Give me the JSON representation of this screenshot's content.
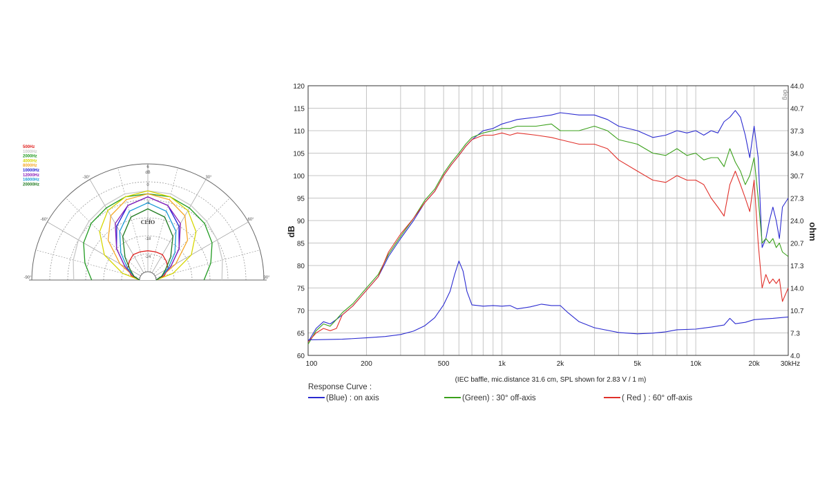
{
  "chart_data": [
    {
      "type": "polar",
      "logo": "CLIO",
      "r_unit": "dB",
      "r_ticks": [
        "6",
        "0",
        "-6",
        "-12",
        "-18",
        "-24"
      ],
      "angle_labels": [
        "-90°",
        "-60°",
        "-30°",
        "30°",
        "60°",
        "90°"
      ],
      "angles": [
        -90,
        -75,
        -60,
        -45,
        -30,
        -15,
        0,
        15,
        30,
        45,
        60,
        75,
        90
      ],
      "series": [
        {
          "name": "500Hz",
          "color": "#e0201e",
          "values": [
            -30,
            -27,
            -25,
            -24,
            -23,
            -23,
            -23,
            -23,
            -23,
            -24,
            -25,
            -27,
            -30
          ]
        },
        {
          "name": "1000Hz",
          "color": "#c8c8c8",
          "values": [
            -8,
            -7,
            -6,
            -5,
            -4,
            -3,
            -3,
            -3,
            -4,
            -5,
            -6,
            -7,
            -8
          ]
        },
        {
          "name": "2000Hz",
          "color": "#1f9a1f",
          "values": [
            -14,
            -11,
            -8,
            -6,
            -5,
            -4,
            -4,
            -4,
            -5,
            -6,
            -8,
            -11,
            -14
          ]
        },
        {
          "name": "4000Hz",
          "color": "#d6d600",
          "values": [
            -30,
            -24,
            -16,
            -10,
            -6,
            -4,
            -3,
            -4,
            -6,
            -10,
            -16,
            -24,
            -30
          ]
        },
        {
          "name": "8000Hz",
          "color": "#f5a623",
          "values": [
            -30,
            -28,
            -22,
            -14,
            -8,
            -5,
            -4,
            -5,
            -8,
            -14,
            -22,
            -28,
            -30
          ]
        },
        {
          "name": "10000Hz",
          "color": "#1b1bd4",
          "values": [
            -30,
            -28,
            -24,
            -18,
            -12,
            -7,
            -5,
            -7,
            -12,
            -18,
            -24,
            -28,
            -30
          ]
        },
        {
          "name": "12000Hz",
          "color": "#8a1fb8",
          "values": [
            -30,
            -28,
            -24,
            -18,
            -11,
            -7,
            -5,
            -7,
            -11,
            -18,
            -24,
            -28,
            -30
          ]
        },
        {
          "name": "16000Hz",
          "color": "#1a9ad6",
          "values": [
            -30,
            -28,
            -25,
            -20,
            -14,
            -9,
            -7,
            -9,
            -14,
            -20,
            -25,
            -28,
            -30
          ]
        },
        {
          "name": "20000Hz",
          "color": "#1e7a1e",
          "values": [
            -30,
            -28,
            -26,
            -22,
            -16,
            -11,
            -9,
            -11,
            -16,
            -22,
            -26,
            -28,
            -30
          ]
        }
      ]
    },
    {
      "type": "line",
      "x_scale": "log",
      "xlim": [
        100,
        30000
      ],
      "ylim": [
        60,
        120
      ],
      "y2lim": [
        4.0,
        44.0
      ],
      "ylabel": "dB",
      "y2label": "ohm",
      "x_ticks": [
        {
          "value": 100,
          "label": "100"
        },
        {
          "value": 200,
          "label": "200"
        },
        {
          "value": 500,
          "label": "500"
        },
        {
          "value": 1000,
          "label": "1k"
        },
        {
          "value": 2000,
          "label": "2k"
        },
        {
          "value": 5000,
          "label": "5k"
        },
        {
          "value": 10000,
          "label": "10k"
        },
        {
          "value": 20000,
          "label": "20k"
        },
        {
          "value": 30000,
          "label": "30kHz"
        }
      ],
      "y_ticks": [
        60,
        65,
        70,
        75,
        80,
        85,
        90,
        95,
        100,
        105,
        110,
        115,
        120
      ],
      "y2_ticks": [
        "4.0",
        "7.3",
        "10.7",
        "14.0",
        "17.3",
        "20.7",
        "24.0",
        "27.3",
        "30.7",
        "34.0",
        "37.3",
        "40.7",
        "44.0"
      ],
      "corner_note": "deg",
      "note": "(IEC baffle, mic.distance 31.6 cm, SPL shown for 2.83 V / 1 m)",
      "legend_title": "Response Curve :",
      "series": [
        {
          "name": "(Blue)  : on axis",
          "color": "#2a2ad0",
          "x": [
            100,
            110,
            120,
            130,
            140,
            150,
            170,
            200,
            230,
            260,
            300,
            350,
            400,
            450,
            500,
            550,
            600,
            650,
            700,
            800,
            900,
            1000,
            1100,
            1200,
            1500,
            1800,
            2000,
            2500,
            3000,
            3500,
            4000,
            5000,
            6000,
            7000,
            8000,
            9000,
            10000,
            11000,
            12000,
            13000,
            14000,
            15000,
            16000,
            17000,
            18000,
            19000,
            20000,
            21000,
            22000,
            23000,
            24000,
            25000,
            26000,
            27000,
            28000,
            30000
          ],
          "y": [
            63,
            66,
            67.5,
            67,
            68,
            69,
            71,
            74.5,
            77.5,
            82,
            86,
            90,
            94,
            96.5,
            100,
            102.5,
            104.5,
            106.5,
            108,
            110,
            110.5,
            111.5,
            112,
            112.5,
            113,
            113.5,
            114,
            113.5,
            113.5,
            112.5,
            111,
            110,
            108.5,
            109,
            110,
            109.5,
            110,
            109,
            110,
            109.5,
            112,
            113,
            114.5,
            113,
            109,
            104,
            111,
            104,
            84,
            86,
            90,
            93,
            90,
            86,
            93,
            95
          ]
        },
        {
          "name": "(Green) : 30° off-axis",
          "color": "#3aa01a",
          "x": [
            100,
            110,
            120,
            130,
            140,
            150,
            170,
            200,
            230,
            260,
            300,
            350,
            400,
            450,
            500,
            550,
            600,
            650,
            700,
            800,
            900,
            1000,
            1100,
            1200,
            1500,
            1800,
            2000,
            2500,
            3000,
            3500,
            4000,
            5000,
            6000,
            7000,
            8000,
            9000,
            10000,
            11000,
            12000,
            13000,
            14000,
            15000,
            16000,
            17000,
            18000,
            19000,
            20000,
            21000,
            22000,
            23000,
            24000,
            25000,
            26000,
            27000,
            28000,
            30000
          ],
          "y": [
            62.5,
            65.5,
            67,
            66.5,
            68,
            69.5,
            71.5,
            75,
            78,
            82.5,
            86.5,
            90.5,
            94.5,
            97,
            100.5,
            103,
            105,
            107,
            108.5,
            109.5,
            110,
            110.5,
            110.5,
            111,
            111,
            111.5,
            110,
            110,
            111,
            110,
            108,
            107,
            105,
            104.5,
            106,
            104.5,
            105,
            103.5,
            104,
            104,
            102,
            106,
            103,
            101,
            98,
            100,
            104,
            95,
            85,
            86,
            85,
            86,
            84,
            85,
            83,
            82
          ]
        },
        {
          "name": "( Red ) : 60° off-axis",
          "color": "#e0302a",
          "x": [
            100,
            110,
            120,
            130,
            140,
            150,
            170,
            200,
            230,
            260,
            300,
            350,
            400,
            450,
            500,
            550,
            600,
            650,
            700,
            800,
            900,
            1000,
            1100,
            1200,
            1500,
            1800,
            2000,
            2500,
            3000,
            3500,
            4000,
            5000,
            6000,
            7000,
            8000,
            9000,
            10000,
            11000,
            12000,
            13000,
            14000,
            15000,
            16000,
            17000,
            18000,
            19000,
            20000,
            21000,
            22000,
            23000,
            24000,
            25000,
            26000,
            27000,
            28000,
            30000
          ],
          "y": [
            63,
            65,
            66,
            65.5,
            66,
            69,
            71,
            74.5,
            77.5,
            83,
            87,
            90.5,
            94,
            96.5,
            100,
            102.5,
            104.5,
            106.5,
            108,
            109,
            109,
            109.5,
            109,
            109.5,
            109,
            108.5,
            108,
            107,
            107,
            106,
            103.5,
            101,
            99,
            98.5,
            100,
            99,
            99,
            98,
            95,
            93,
            91,
            98,
            101,
            98,
            95,
            92,
            99,
            85,
            75,
            78,
            76,
            77,
            76,
            77,
            72,
            75
          ]
        },
        {
          "name": "impedance",
          "axis": "y2",
          "color": "#2a2ad0",
          "x": [
            100,
            150,
            200,
            250,
            300,
            350,
            400,
            450,
            500,
            540,
            570,
            600,
            630,
            660,
            700,
            800,
            900,
            1000,
            1100,
            1200,
            1400,
            1600,
            1800,
            2000,
            2200,
            2500,
            3000,
            4000,
            5000,
            6000,
            7000,
            8000,
            10000,
            12000,
            14000,
            15000,
            16000,
            18000,
            20000,
            22000,
            25000,
            30000
          ],
          "y": [
            6.3,
            6.4,
            6.6,
            6.8,
            7.1,
            7.6,
            8.4,
            9.6,
            11.5,
            13.5,
            16,
            18.0,
            16.5,
            13.5,
            11.5,
            11.3,
            11.4,
            11.3,
            11.4,
            10.9,
            11.2,
            11.6,
            11.4,
            11.4,
            10.3,
            9.0,
            8.1,
            7.4,
            7.2,
            7.3,
            7.5,
            7.8,
            7.9,
            8.2,
            8.5,
            9.5,
            8.7,
            8.9,
            9.3,
            9.4,
            9.5,
            9.7
          ]
        }
      ]
    }
  ]
}
